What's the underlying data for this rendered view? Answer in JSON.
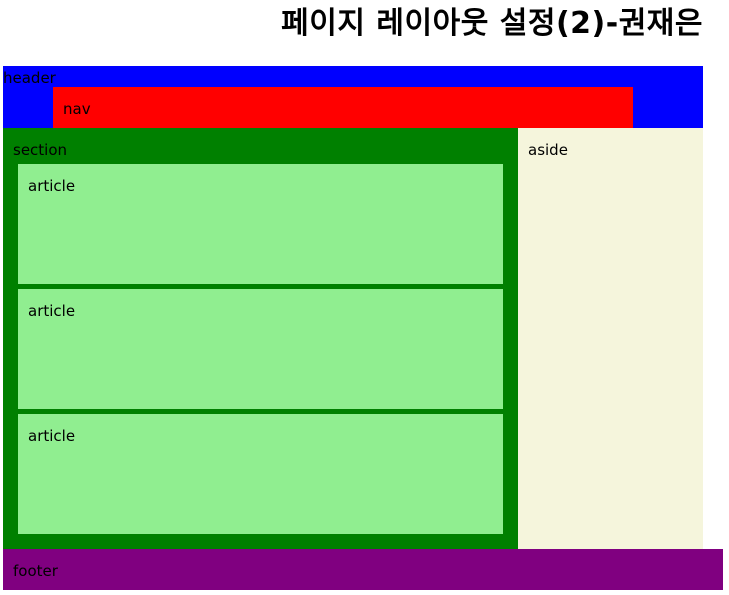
{
  "page": {
    "title": "페이지 레이아웃 설정(2)-권재은"
  },
  "header": {
    "label": "header",
    "color": "#0000ff"
  },
  "nav": {
    "label": "nav",
    "color": "#ff0000"
  },
  "section": {
    "label": "section",
    "color": "#008000",
    "articles": [
      {
        "label": "article",
        "color": "#90ee90"
      },
      {
        "label": "article",
        "color": "#90ee90"
      },
      {
        "label": "article",
        "color": "#90ee90"
      }
    ]
  },
  "aside": {
    "label": "aside",
    "color": "#f5f5dc"
  },
  "footer": {
    "label": "footer",
    "color": "#800080"
  }
}
